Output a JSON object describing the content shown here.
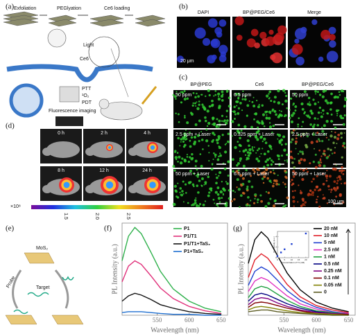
{
  "panels": {
    "a": {
      "label": "(a)",
      "steps": [
        "Exfoliation",
        "PEGlyation",
        "Ce6 loading"
      ],
      "light": "Light",
      "ce6": "Ce6",
      "ptt": "PTT",
      "singlet": "¹O₂",
      "pdt": "PDT",
      "imaging": "Fluorescence imaging"
    },
    "b": {
      "label": "(b)",
      "headers": [
        "DAPI",
        "BP@PEG/Ce6",
        "Merge"
      ],
      "scale": "20 μm"
    },
    "c": {
      "label": "(c)",
      "headers": [
        "BP@PEG",
        "Ce6",
        "BP@PEG/Ce6"
      ],
      "cells": [
        [
          "50 ppm",
          "6.5 ppm",
          "50 ppm"
        ],
        [
          "2.5 ppm + Laser",
          "0.325 ppm + Laser",
          "2.5 ppm + Laser"
        ],
        [
          "50 ppm + Laser",
          "6.5 ppm + Laser",
          "50 ppm + Laser"
        ]
      ],
      "scale": "100 μm"
    },
    "d": {
      "label": "(d)",
      "times": [
        [
          "0 h",
          "2 h",
          "4 h"
        ],
        [
          "8 h",
          "12 h",
          "24 h"
        ]
      ],
      "unit": "×10⁸",
      "colorbar_ticks": [
        "1.5",
        "2.0",
        "2.5"
      ]
    },
    "e": {
      "label": "(e)",
      "material": "MoS₂",
      "target": "Target",
      "probe": "Probe"
    },
    "f": {
      "label": "(f)"
    },
    "g": {
      "label": "(g)"
    }
  },
  "chart_data": [
    {
      "type": "line",
      "x_label": "Wavelength (nm)",
      "y_label": "PL Intensity (a.u.)",
      "legend": "upper right",
      "x": [
        495,
        505,
        515,
        525,
        540,
        555,
        575,
        600,
        625,
        650
      ],
      "xlim": [
        495,
        660
      ],
      "xticks": [
        550,
        600,
        650
      ],
      "ylim": [
        0,
        105
      ],
      "series": [
        {
          "name": "P1",
          "color": "#2db04a",
          "values": [
            62,
            90,
            100,
            93,
            72,
            50,
            30,
            16,
            8,
            4
          ]
        },
        {
          "name": "P1/T1",
          "color": "#e0307a",
          "values": [
            38,
            56,
            62,
            58,
            45,
            31,
            19,
            10,
            5,
            2
          ]
        },
        {
          "name": "P1/T1+TaS₂",
          "color": "#111111",
          "values": [
            16,
            22,
            25,
            23,
            18,
            12,
            8,
            4,
            2,
            1
          ]
        },
        {
          "name": "P1+TaS₂",
          "color": "#1f6fd0",
          "values": [
            3,
            4,
            4,
            4,
            3,
            2,
            1,
            1,
            0,
            0
          ]
        }
      ]
    },
    {
      "type": "line",
      "x_label": "Wavelength (nm)",
      "y_label": "PL Intensity (a.u.)",
      "legend": "upper right",
      "x": [
        495,
        505,
        515,
        525,
        540,
        555,
        575,
        600,
        625,
        650
      ],
      "xlim": [
        495,
        660
      ],
      "xticks": [
        550,
        600,
        650
      ],
      "ylim": [
        0,
        105
      ],
      "series": [
        {
          "name": "20 nM",
          "color": "#000000",
          "values": [
            59,
            86,
            95,
            88,
            68,
            48,
            29,
            15,
            8,
            4
          ]
        },
        {
          "name": "10 nM",
          "color": "#e0202a",
          "values": [
            43,
            63,
            70,
            65,
            50,
            35,
            21,
            11,
            6,
            3
          ]
        },
        {
          "name": "5 nM",
          "color": "#1f3fd0",
          "values": [
            34,
            50,
            55,
            51,
            40,
            28,
            17,
            9,
            4,
            2
          ]
        },
        {
          "name": "2.5 nM",
          "color": "#e030c0",
          "values": [
            27,
            39,
            43,
            40,
            31,
            22,
            13,
            7,
            3,
            2
          ]
        },
        {
          "name": "1 nM",
          "color": "#20a040",
          "values": [
            20,
            30,
            33,
            31,
            24,
            17,
            10,
            5,
            3,
            1
          ]
        },
        {
          "name": "0.5 nM",
          "color": "#000080",
          "values": [
            16,
            23,
            25,
            23,
            18,
            13,
            8,
            4,
            2,
            1
          ]
        },
        {
          "name": "0.25 nM",
          "color": "#800080",
          "values": [
            12,
            18,
            20,
            19,
            14,
            10,
            6,
            3,
            2,
            1
          ]
        },
        {
          "name": "0.1 nM",
          "color": "#800000",
          "values": [
            9,
            14,
            15,
            14,
            11,
            8,
            5,
            2,
            1,
            1
          ]
        },
        {
          "name": "0.05 nM",
          "color": "#808000",
          "values": [
            6,
            9,
            10,
            9,
            7,
            5,
            3,
            2,
            1,
            0
          ]
        },
        {
          "name": "0",
          "color": "#5a5a20",
          "values": [
            4,
            5,
            6,
            6,
            4,
            3,
            2,
            1,
            0,
            0
          ]
        }
      ]
    },
    {
      "type": "scatter",
      "x_label": "Concentration of T1 (nM)",
      "y_label": "FL Intensity (a.u.)",
      "color": "#1f3fd0",
      "x": [
        0,
        2.5,
        5,
        10,
        20
      ],
      "values": [
        0.3,
        1.0,
        1.6,
        2.6,
        4.6
      ],
      "xlim": [
        0,
        22
      ],
      "ylim": [
        0,
        5
      ],
      "xticks": [
        0,
        5,
        10,
        15,
        20
      ],
      "yticks": [
        0,
        2,
        4
      ]
    }
  ]
}
